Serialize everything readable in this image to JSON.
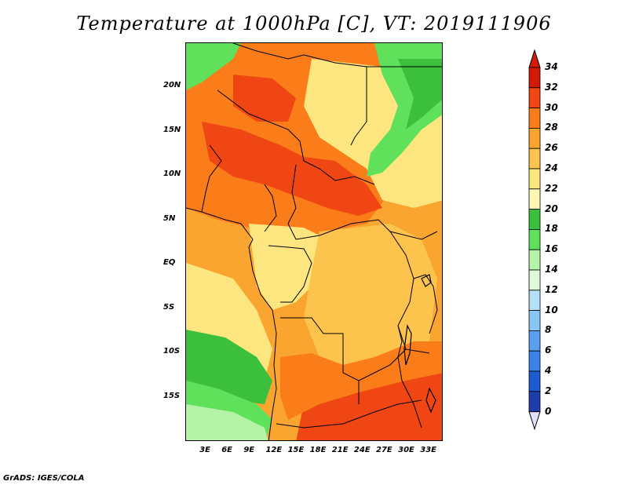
{
  "title": "Temperature at 1000hPa [C], VT: 2019111906",
  "credit": "GrADS: IGES/COLA",
  "map": {
    "lon_range": [
      0,
      35
    ],
    "lat_range": [
      -20,
      25
    ],
    "lon_ticks": [
      {
        "value": 3,
        "label": "3E"
      },
      {
        "value": 6,
        "label": "6E"
      },
      {
        "value": 9,
        "label": "9E"
      },
      {
        "value": 12,
        "label": "12E"
      },
      {
        "value": 15,
        "label": "15E"
      },
      {
        "value": 18,
        "label": "18E"
      },
      {
        "value": 21,
        "label": "21E"
      },
      {
        "value": 24,
        "label": "24E"
      },
      {
        "value": 27,
        "label": "27E"
      },
      {
        "value": 30,
        "label": "30E"
      },
      {
        "value": 33,
        "label": "33E"
      }
    ],
    "lat_ticks": [
      {
        "value": 20,
        "label": "20N"
      },
      {
        "value": 15,
        "label": "15N"
      },
      {
        "value": 10,
        "label": "10N"
      },
      {
        "value": 5,
        "label": "5N"
      },
      {
        "value": 0,
        "label": "EQ"
      },
      {
        "value": -5,
        "label": "5S"
      },
      {
        "value": -10,
        "label": "10S"
      },
      {
        "value": -15,
        "label": "15S"
      }
    ],
    "region_colors": {
      "sahara_green": "#5fe15b",
      "sahel_hot": "#fa7d1a",
      "red_hot": "#f04614",
      "orange": "#fba531",
      "light_orange": "#fcc34d",
      "yellow": "#fde67f",
      "pale_green": "#b4f3a8",
      "green": "#3cc03c"
    }
  },
  "legend": {
    "levels": [
      {
        "value": "34",
        "color": "#d31a08"
      },
      {
        "value": "32",
        "color": "#f04614"
      },
      {
        "value": "30",
        "color": "#fa7d1a"
      },
      {
        "value": "28",
        "color": "#fba531"
      },
      {
        "value": "26",
        "color": "#fcc34d"
      },
      {
        "value": "24",
        "color": "#fde67f"
      },
      {
        "value": "22",
        "color": "#fef8b4"
      },
      {
        "value": "20",
        "color": "#3cc03c"
      },
      {
        "value": "18",
        "color": "#5fe15b"
      },
      {
        "value": "16",
        "color": "#b4f3a8"
      },
      {
        "value": "14",
        "color": "#e0fad8"
      },
      {
        "value": "12",
        "color": "#b4e1fa"
      },
      {
        "value": "10",
        "color": "#87c6f5"
      },
      {
        "value": "8",
        "color": "#5aa0ef"
      },
      {
        "value": "6",
        "color": "#3c82e6"
      },
      {
        "value": "4",
        "color": "#1e5ad2"
      },
      {
        "value": "2",
        "color": "#1e3caa"
      },
      {
        "value": "0",
        "color": "#101478"
      }
    ],
    "top_arrow_color": "#d31a08",
    "bottom_arrow_color": "#e0e0fa"
  }
}
